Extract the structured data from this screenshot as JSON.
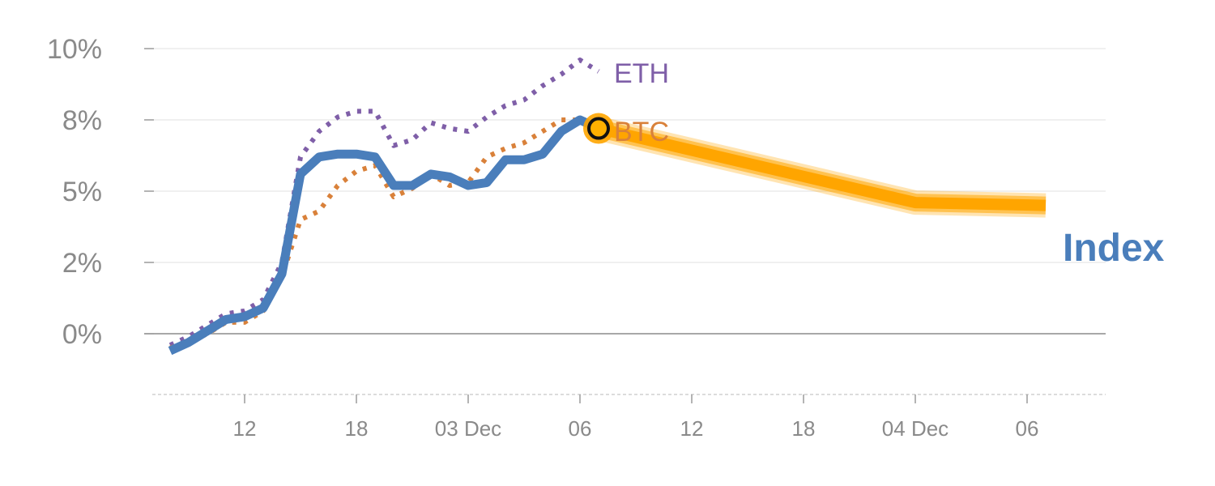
{
  "chart_data": {
    "type": "line",
    "title": "",
    "xlabel": "",
    "ylabel": "",
    "ylim": [
      -2.1,
      10.5
    ],
    "y_ticks": [
      {
        "value": 0,
        "label": "0%"
      },
      {
        "value": 2.5,
        "label": "2%"
      },
      {
        "value": 5,
        "label": "5%"
      },
      {
        "value": 7.5,
        "label": "8%"
      },
      {
        "value": 10,
        "label": "10%"
      }
    ],
    "x_ticks": [
      {
        "x": 4,
        "label": "12"
      },
      {
        "x": 10,
        "label": "18"
      },
      {
        "x": 16,
        "label": "03 Dec"
      },
      {
        "x": 22,
        "label": "06"
      },
      {
        "x": 28,
        "label": "12"
      },
      {
        "x": 34,
        "label": "18"
      },
      {
        "x": 40,
        "label": "04 Dec"
      },
      {
        "x": 46,
        "label": "06"
      }
    ],
    "x_range": [
      -1,
      50.5
    ],
    "series": [
      {
        "name": "ETH",
        "style": "dotted",
        "color": "#7f5fa8",
        "x": [
          0,
          1,
          2,
          3,
          4,
          5,
          6,
          7,
          8,
          9,
          10,
          11,
          12,
          13,
          14,
          15,
          16,
          17,
          18,
          19,
          20,
          21,
          22,
          23
        ],
        "values": [
          -0.4,
          -0.1,
          0.3,
          0.7,
          0.8,
          1.2,
          2.5,
          6.2,
          7.1,
          7.6,
          7.8,
          7.8,
          6.6,
          6.8,
          7.4,
          7.2,
          7.1,
          7.6,
          8.0,
          8.2,
          8.7,
          9.1,
          9.6,
          9.2
        ]
      },
      {
        "name": "BTC",
        "style": "dotted",
        "color": "#d9813a",
        "x": [
          0,
          1,
          2,
          3,
          4,
          5,
          6,
          7,
          8,
          9,
          10,
          11,
          12,
          13,
          14,
          15,
          16,
          17,
          18,
          19,
          20,
          21,
          22,
          23
        ],
        "values": [
          -0.5,
          -0.3,
          0.0,
          0.4,
          0.4,
          0.8,
          2.0,
          4.0,
          4.3,
          5.2,
          5.7,
          5.9,
          4.8,
          5.1,
          5.6,
          5.2,
          5.3,
          6.2,
          6.5,
          6.7,
          7.1,
          7.5,
          7.5,
          7.3
        ]
      },
      {
        "name": "Index",
        "style": "solid",
        "color": "#4a7ebb",
        "x": [
          0,
          1,
          2,
          3,
          4,
          5,
          6,
          7,
          8,
          9,
          10,
          11,
          12,
          13,
          14,
          15,
          16,
          17,
          18,
          19,
          20,
          21,
          22,
          23
        ],
        "values": [
          -0.6,
          -0.3,
          0.1,
          0.5,
          0.6,
          0.9,
          2.1,
          5.6,
          6.2,
          6.3,
          6.3,
          6.2,
          5.2,
          5.2,
          5.6,
          5.5,
          5.2,
          5.3,
          6.1,
          6.1,
          6.3,
          7.1,
          7.5,
          7.2
        ]
      }
    ],
    "forecast": {
      "name": "Index forecast",
      "color": "#ffa500",
      "x": [
        23,
        40,
        47
      ],
      "values": [
        7.2,
        4.6,
        4.5
      ]
    },
    "labels": {
      "eth": "ETH",
      "btc": "BTC",
      "index": "Index"
    }
  }
}
